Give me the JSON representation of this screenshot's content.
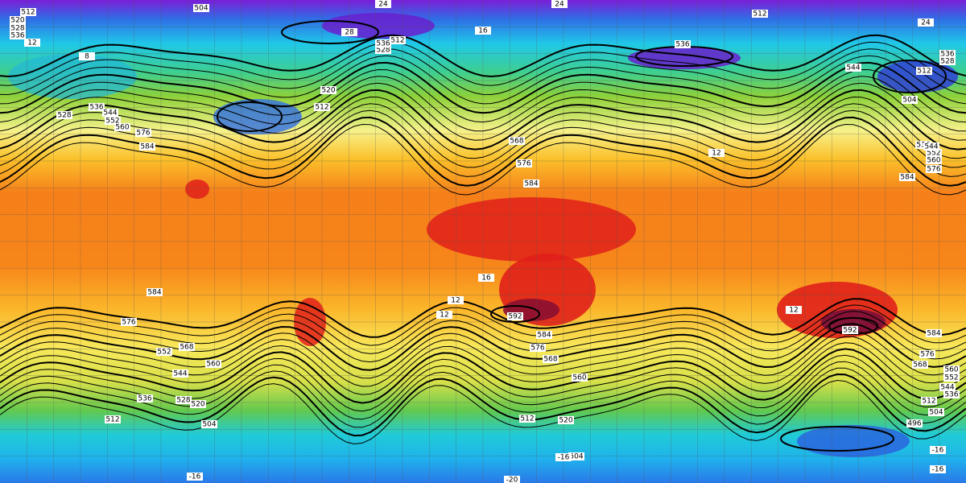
{
  "contour_labels": [
    512,
    504,
    24,
    24,
    512,
    520,
    528,
    536,
    12,
    8,
    528,
    536,
    544,
    552,
    560,
    576,
    584,
    520,
    512,
    512,
    528,
    536,
    28,
    16,
    536,
    544,
    536,
    528,
    512,
    504,
    24,
    536,
    552,
    560,
    576,
    584,
    544,
    12,
    584,
    568,
    576,
    584,
    576,
    568,
    560,
    552,
    544,
    536,
    528,
    520,
    504,
    512,
    592,
    584,
    576,
    568,
    560,
    520,
    512,
    504,
    592,
    584,
    576,
    568,
    560,
    552,
    544,
    536,
    512,
    504,
    496,
    12,
    12,
    16,
    12,
    -16,
    -20,
    -16,
    -16,
    -16
  ]
}
